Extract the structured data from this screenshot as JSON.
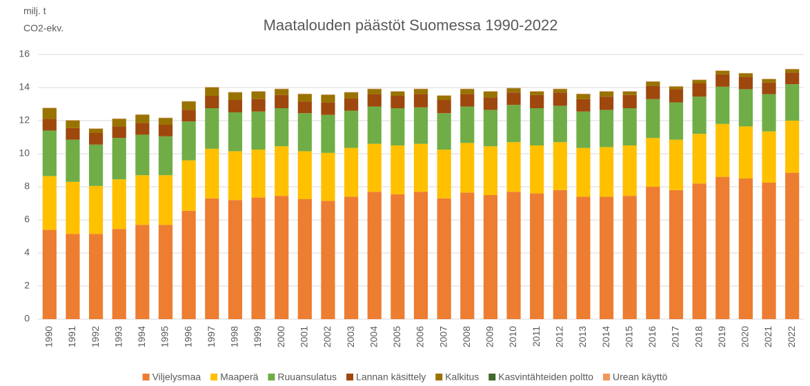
{
  "chart_data": {
    "type": "bar",
    "stacked": true,
    "title": "Maatalouden päästöt Suomessa 1990-2022",
    "y_label": [
      "milj. t",
      "CO2-ekv."
    ],
    "categories": [
      "1990",
      "1991",
      "1992",
      "1993",
      "1994",
      "1995",
      "1996",
      "1997",
      "1998",
      "1999",
      "2000",
      "2001",
      "2002",
      "2003",
      "2004",
      "2005",
      "2006",
      "2007",
      "2008",
      "2009",
      "2010",
      "2011",
      "2012",
      "2013",
      "2014",
      "2015",
      "2016",
      "2017",
      "2018",
      "2019",
      "2020",
      "2021",
      "2022"
    ],
    "series": [
      {
        "name": "Viljelysmaa",
        "color": "#ED7D31",
        "values": [
          5.4,
          5.15,
          5.15,
          5.45,
          5.7,
          5.7,
          6.55,
          7.3,
          7.2,
          7.35,
          7.45,
          7.25,
          7.15,
          7.4,
          7.7,
          7.55,
          7.7,
          7.3,
          7.65,
          7.5,
          7.7,
          7.6,
          7.8,
          7.4,
          7.4,
          7.45,
          8.0,
          7.8,
          8.2,
          8.6,
          8.5,
          8.25,
          8.85
        ]
      },
      {
        "name": "Maaperä",
        "color": "#FFC000",
        "values": [
          3.25,
          3.15,
          2.9,
          3.0,
          3.0,
          3.0,
          3.05,
          3.0,
          2.95,
          2.9,
          3.0,
          2.9,
          2.9,
          2.95,
          2.9,
          2.95,
          2.9,
          2.95,
          3.0,
          2.95,
          3.0,
          2.9,
          2.9,
          2.95,
          3.0,
          3.05,
          2.95,
          3.05,
          3.0,
          3.2,
          3.15,
          3.1,
          3.15
        ]
      },
      {
        "name": "Ruuansulatus",
        "color": "#70AD47",
        "values": [
          2.75,
          2.55,
          2.5,
          2.5,
          2.45,
          2.35,
          2.35,
          2.45,
          2.35,
          2.3,
          2.3,
          2.3,
          2.3,
          2.25,
          2.25,
          2.25,
          2.2,
          2.2,
          2.2,
          2.2,
          2.25,
          2.25,
          2.2,
          2.2,
          2.25,
          2.25,
          2.35,
          2.25,
          2.25,
          2.25,
          2.25,
          2.25,
          2.2
        ]
      },
      {
        "name": "Lannan käsittely",
        "color": "#9E480E",
        "values": [
          0.7,
          0.7,
          0.7,
          0.7,
          0.7,
          0.7,
          0.7,
          0.75,
          0.75,
          0.75,
          0.8,
          0.7,
          0.75,
          0.75,
          0.75,
          0.75,
          0.8,
          0.8,
          0.75,
          0.75,
          0.75,
          0.8,
          0.8,
          0.75,
          0.8,
          0.8,
          0.8,
          0.8,
          0.8,
          0.75,
          0.75,
          0.7,
          0.7
        ]
      },
      {
        "name": "Kalkitus",
        "color": "#997300",
        "values": [
          0.65,
          0.45,
          0.25,
          0.45,
          0.5,
          0.4,
          0.5,
          0.5,
          0.45,
          0.45,
          0.35,
          0.45,
          0.45,
          0.35,
          0.3,
          0.25,
          0.3,
          0.25,
          0.3,
          0.35,
          0.25,
          0.2,
          0.2,
          0.3,
          0.3,
          0.2,
          0.25,
          0.15,
          0.2,
          0.2,
          0.2,
          0.2,
          0.2
        ]
      },
      {
        "name": "Kasvintähteiden poltto",
        "color": "#43682B",
        "values": [
          0.01,
          0.01,
          0.01,
          0.01,
          0.01,
          0.01,
          0.01,
          0.01,
          0.01,
          0.01,
          0.01,
          0.01,
          0.01,
          0.01,
          0.01,
          0.01,
          0.01,
          0.01,
          0.01,
          0.01,
          0.01,
          0.01,
          0.01,
          0.01,
          0.01,
          0.01,
          0.01,
          0.01,
          0.01,
          0.01,
          0.01,
          0.01,
          0.01
        ]
      },
      {
        "name": "Urean käyttö",
        "color": "#F1975A",
        "values": [
          0.02,
          0.02,
          0.02,
          0.02,
          0.02,
          0.02,
          0.02,
          0.02,
          0.02,
          0.02,
          0.02,
          0.02,
          0.02,
          0.02,
          0.02,
          0.02,
          0.02,
          0.02,
          0.02,
          0.02,
          0.02,
          0.02,
          0.02,
          0.02,
          0.02,
          0.02,
          0.02,
          0.02,
          0.02,
          0.02,
          0.02,
          0.02,
          0.02
        ]
      }
    ],
    "ylim": [
      0,
      16
    ],
    "yticks": [
      0,
      2,
      4,
      6,
      8,
      10,
      12,
      14,
      16
    ],
    "grid": true,
    "legend": "bottom"
  }
}
